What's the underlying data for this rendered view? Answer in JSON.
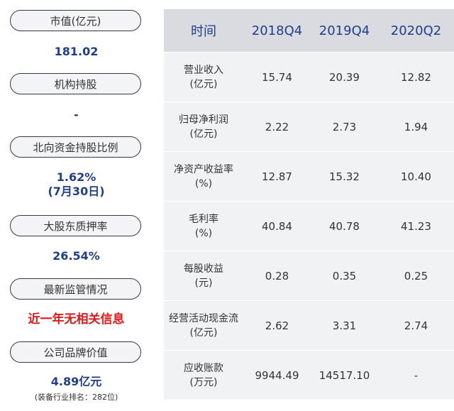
{
  "sidebar": {
    "market_cap_label": "市值(亿元)",
    "market_cap_value": "181.02",
    "institutional_label": "机构持股",
    "institutional_value": "-",
    "northbound_label": "北向资金持股比例",
    "northbound_value": "1.62%",
    "northbound_date": "(7月30日)",
    "pledge_label": "大股东质押率",
    "pledge_value": "26.54%",
    "regulation_label": "最新监管情况",
    "regulation_value": "近一年无相关信息",
    "brand_label": "公司品牌价值",
    "brand_value": "4.89亿元",
    "brand_note": "(装备行业排名：282位)"
  },
  "table": {
    "header": [
      "时间",
      "2018Q4",
      "2019Q4",
      "2020Q2"
    ],
    "rows": [
      {
        "name": "营业收入",
        "unit": "(亿元)",
        "values": [
          "15.74",
          "20.39",
          "12.82"
        ]
      },
      {
        "name": "归母净利润",
        "unit": "(亿元)",
        "values": [
          "2.22",
          "2.73",
          "1.94"
        ]
      },
      {
        "name": "净资产收益率",
        "unit": "(%)",
        "values": [
          "12.87",
          "15.32",
          "10.40"
        ]
      },
      {
        "name": "毛利率",
        "unit": "(%)",
        "values": [
          "40.84",
          "40.78",
          "41.23"
        ]
      },
      {
        "name": "每股收益",
        "unit": "(元)",
        "values": [
          "0.28",
          "0.35",
          "0.25"
        ]
      },
      {
        "name": "经营活动现金流",
        "unit": "(亿元)",
        "values": [
          "2.62",
          "3.31",
          "2.74"
        ]
      },
      {
        "name": "应收账款",
        "unit": "(万元)",
        "values": [
          "9944.49",
          "14517.10",
          "-"
        ]
      }
    ]
  }
}
